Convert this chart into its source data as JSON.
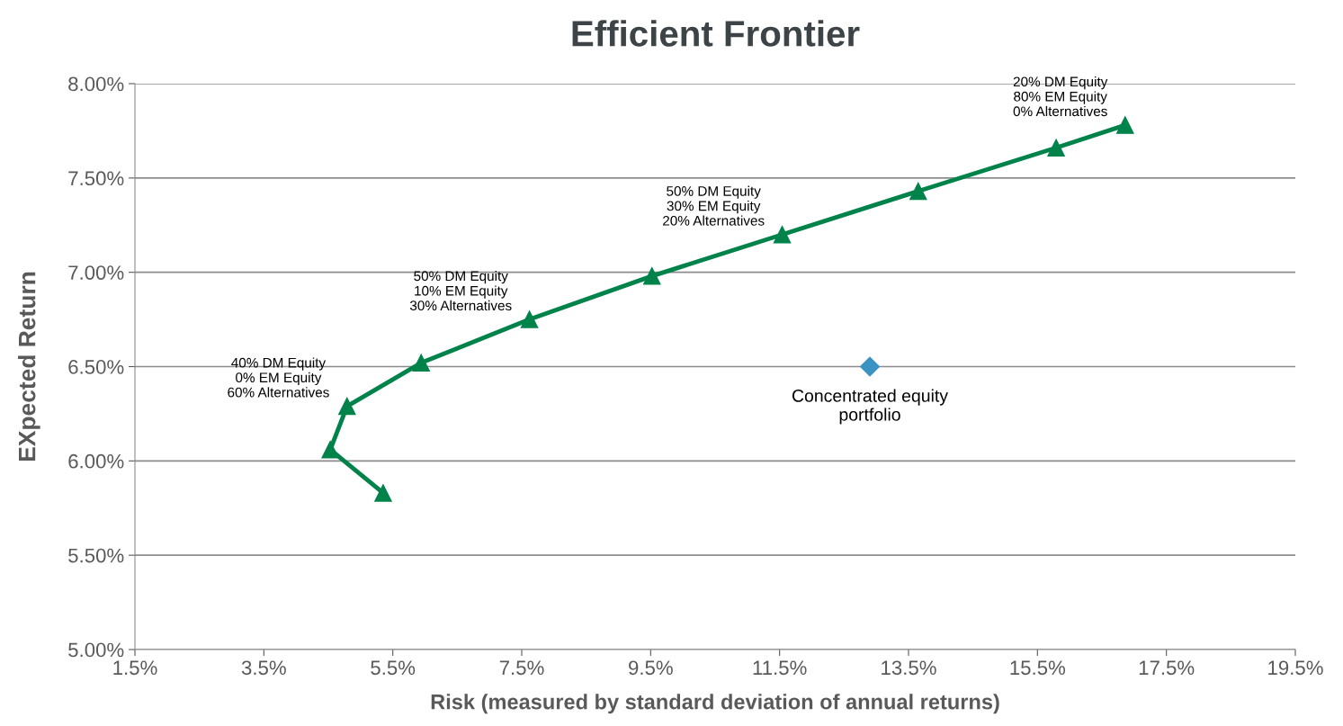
{
  "chart_data": {
    "type": "line",
    "title": "Efficient Frontier",
    "xlabel": "Risk (measured by standard deviation of annual returns)",
    "ylabel": "EXpected Return",
    "xlim": [
      1.5,
      19.5
    ],
    "xticks": [
      {
        "value": 1.5,
        "label": "1.5%"
      },
      {
        "value": 3.5,
        "label": "3.5%"
      },
      {
        "value": 5.5,
        "label": "5.5%"
      },
      {
        "value": 7.5,
        "label": "7.5%"
      },
      {
        "value": 9.5,
        "label": "9.5%"
      },
      {
        "value": 11.5,
        "label": "11.5%"
      },
      {
        "value": 13.5,
        "label": "13.5%"
      },
      {
        "value": 15.5,
        "label": "15.5%"
      },
      {
        "value": 17.5,
        "label": "17.5%"
      },
      {
        "value": 19.5,
        "label": "19.5%"
      }
    ],
    "ylim": [
      5.0,
      8.0
    ],
    "yticks": [
      {
        "value": 5.0,
        "label": "5.00%"
      },
      {
        "value": 5.5,
        "label": "5.50%"
      },
      {
        "value": 6.0,
        "label": "6.00%"
      },
      {
        "value": 6.5,
        "label": "6.50%"
      },
      {
        "value": 7.0,
        "label": "7.00%"
      },
      {
        "value": 7.5,
        "label": "7.50%"
      },
      {
        "value": 8.0,
        "label": "8.00%"
      }
    ],
    "grid": "y",
    "legend": false,
    "series": [
      {
        "color": "#00834a",
        "marker": "triangle",
        "line_style": "solid",
        "x": [
          5.35,
          4.53,
          4.79,
          5.94,
          7.62,
          9.52,
          11.54,
          13.65,
          15.79,
          16.86
        ],
        "values": [
          5.83,
          6.06,
          6.29,
          6.52,
          6.75,
          6.98,
          7.2,
          7.43,
          7.66,
          7.78
        ]
      },
      {
        "type": "scatter",
        "name": "Concentrated equity portfolio",
        "color": "#3b93c3",
        "marker": "diamond",
        "x": [
          12.9
        ],
        "values": [
          6.5
        ]
      }
    ],
    "annotations": [
      {
        "text": "40% DM Equity\n0% EM Equity\n60% Alternatives",
        "x": 4.79,
        "y": 6.29
      },
      {
        "text": "50% DM Equity\n10% EM Equity\n30% Alternatives",
        "x": 7.62,
        "y": 6.75
      },
      {
        "text": "50% DM Equity\n30% EM Equity\n20% Alternatives",
        "x": 11.54,
        "y": 7.2
      },
      {
        "text": "20% DM Equity\n80% EM Equity\n0% Alternatives",
        "x": 16.86,
        "y": 7.78
      }
    ]
  }
}
